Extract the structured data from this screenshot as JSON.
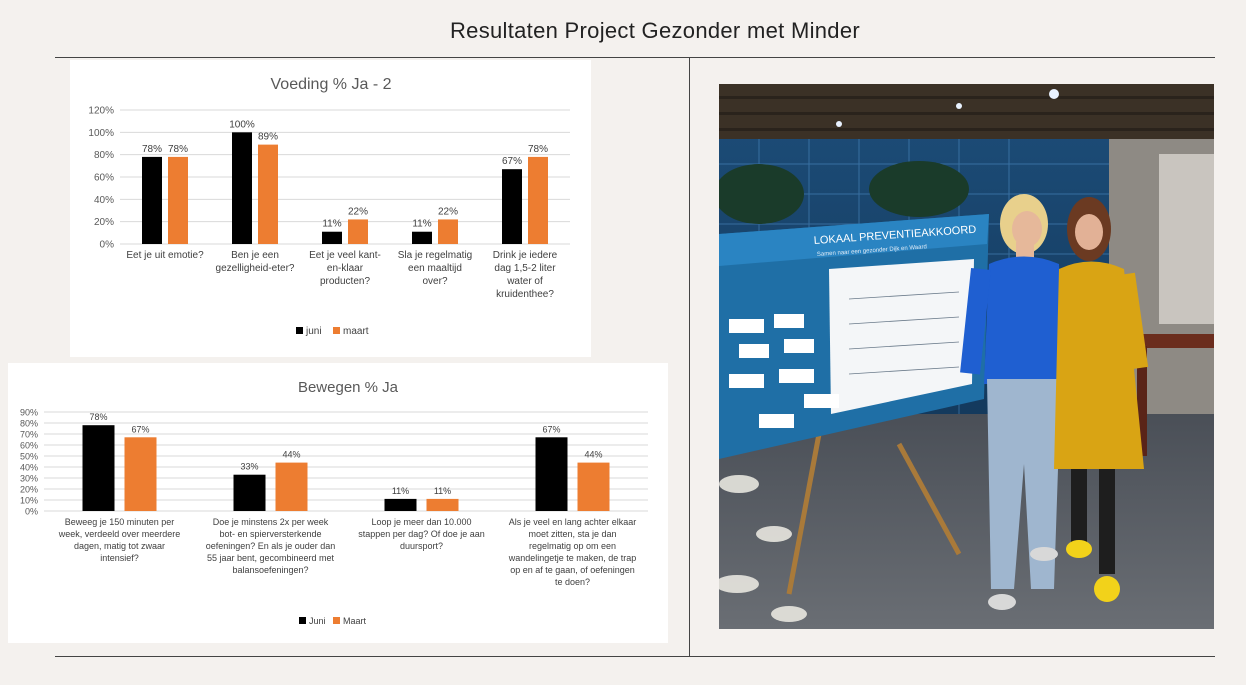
{
  "page": {
    "title": "Resultaten Project Gezonder met Minder"
  },
  "colors": {
    "background": "#f4f1ee",
    "series_juni": "#000000",
    "series_maart": "#ed7d31",
    "grid": "#d9d9d9"
  },
  "chart_data": [
    {
      "type": "bar",
      "title": "Voeding % Ja - 2",
      "categories": [
        [
          "Eet je uit emotie?"
        ],
        [
          "Ben je een",
          "gezelligheid-eter?"
        ],
        [
          "Eet je veel kant-",
          "en-klaar",
          "producten?"
        ],
        [
          "Sla je regelmatig",
          "een maaltijd",
          "over?"
        ],
        [
          "Drink je iedere",
          "dag 1,5-2 liter",
          "water of",
          "kruidenthee?"
        ]
      ],
      "series": [
        {
          "name": "juni",
          "values": [
            78,
            100,
            11,
            11,
            67
          ],
          "labels": [
            "78%",
            "100%",
            "11%",
            "11%",
            "67%"
          ]
        },
        {
          "name": "maart",
          "values": [
            78,
            89,
            22,
            22,
            78
          ],
          "labels": [
            "78%",
            "89%",
            "22%",
            "22%",
            "78%"
          ]
        }
      ],
      "yticks": [
        "120%",
        "100%",
        "80%",
        "60%",
        "40%",
        "20%",
        "0%"
      ],
      "ylim": [
        0,
        120
      ],
      "grid": true,
      "legend": "bottom"
    },
    {
      "type": "bar",
      "title": "Bewegen %  Ja",
      "categories": [
        [
          "Beweeg je 150 minuten per",
          "week, verdeeld over meerdere",
          "dagen, matig tot zwaar",
          "intensief?"
        ],
        [
          "Doe je minstens 2x per week",
          "bot- en spierversterkende",
          "oefeningen? En als je ouder dan",
          "55 jaar bent, gecombineerd met",
          "balansoefeningen?"
        ],
        [
          "Loop je meer dan 10.000",
          "stappen per dag? Of doe je aan",
          "duursport?"
        ],
        [
          "Als je veel en lang achter elkaar",
          "moet zitten, sta je dan",
          "regelmatig op om een",
          "wandelingetje te maken, de trap",
          "op en af te gaan, of oefeningen",
          "te doen?"
        ]
      ],
      "series": [
        {
          "name": "Juni",
          "values": [
            78,
            33,
            11,
            67
          ],
          "labels": [
            "78%",
            "33%",
            "11%",
            "67%"
          ]
        },
        {
          "name": "Maart",
          "values": [
            67,
            44,
            11,
            44
          ],
          "labels": [
            "67%",
            "44%",
            "11%",
            "44%"
          ]
        }
      ],
      "yticks": [
        "90%",
        "80%",
        "70%",
        "60%",
        "50%",
        "40%",
        "30%",
        "20%",
        "10%",
        "0%"
      ],
      "ylim": [
        0,
        90
      ],
      "grid": true,
      "legend": "bottom"
    }
  ],
  "photo": {
    "board_title": "LOKAAL PREVENTIEAKKOORD",
    "board_subtitle": "Samen naar een gezonder Dijk en Waard"
  }
}
